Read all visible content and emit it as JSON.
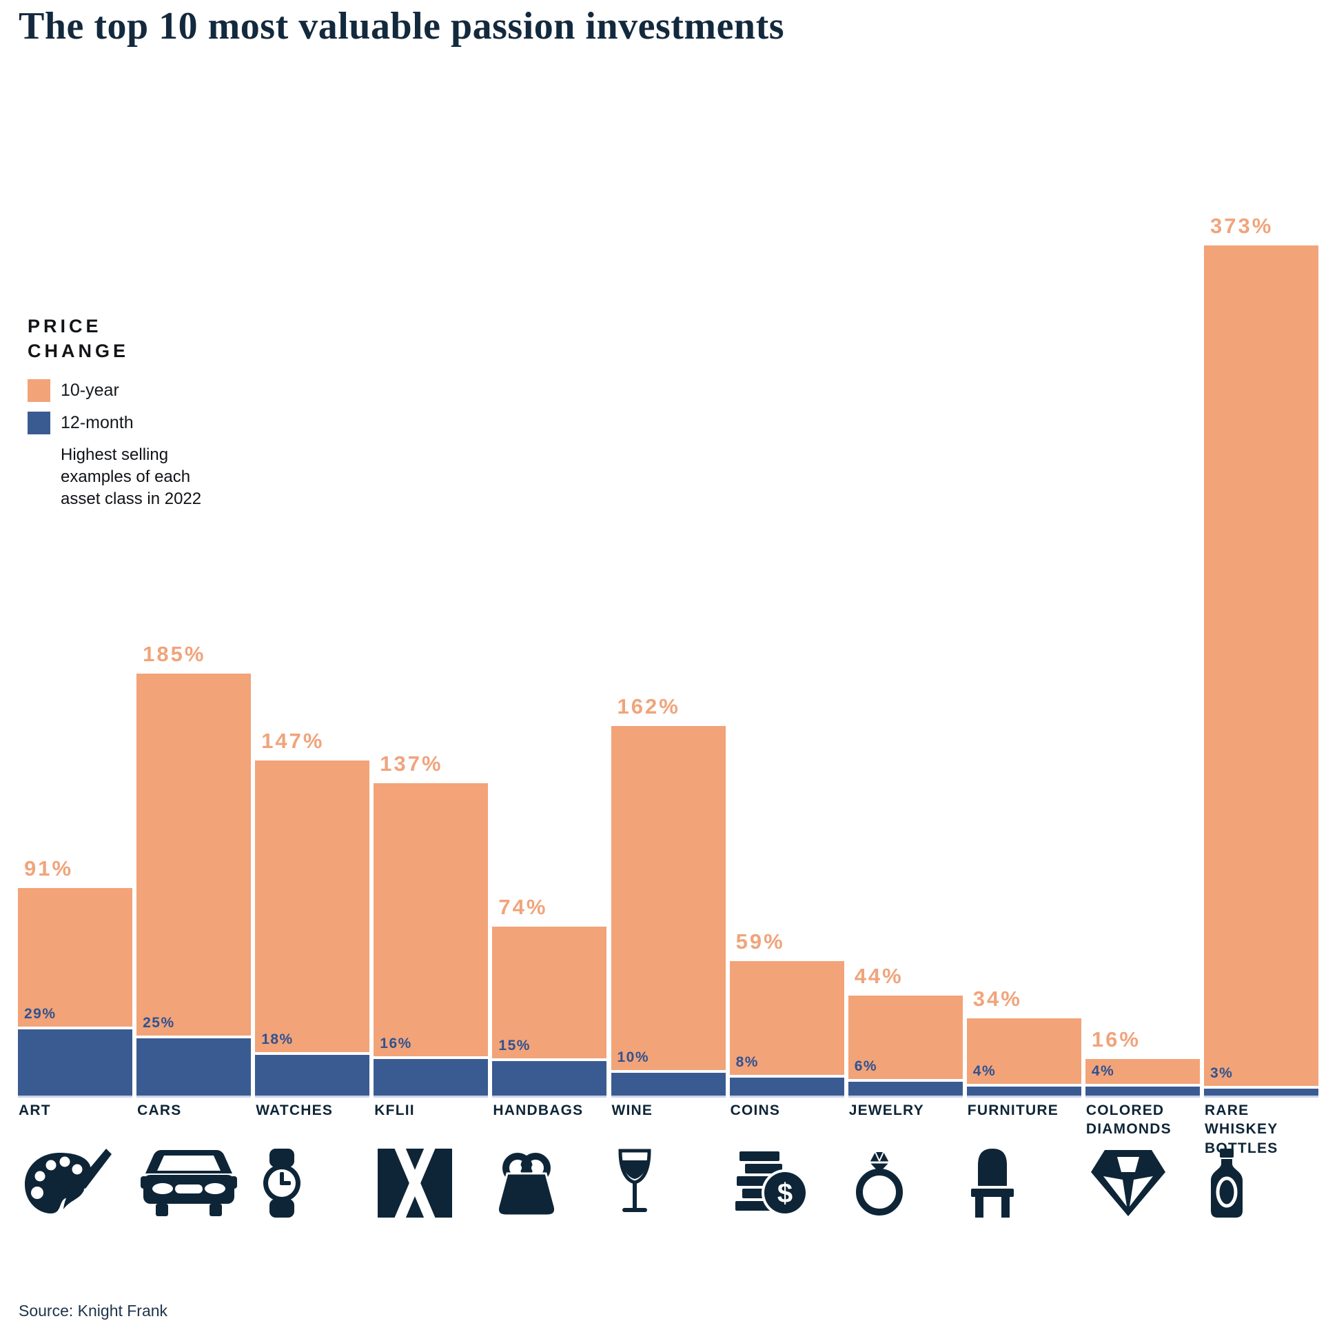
{
  "title": "The top 10 most valuable passion investments",
  "source": "Source: Knight Frank",
  "legend": {
    "title": "PRICE\nCHANGE",
    "items": [
      {
        "label": "10-year",
        "color": "#F2A378"
      },
      {
        "label": "12-month",
        "color": "#3A5B92"
      }
    ],
    "note": "Highest selling\nexamples of each\nasset class in 2022"
  },
  "colors": {
    "ten_year_bar": "#F2A378",
    "ten_year_text": "#F0A47C",
    "twelve_month_bar": "#3A5B92",
    "twelve_month_text": "#2F5290",
    "navy_text": "#0E2537",
    "title_text": "#13293D",
    "bar_underline": "#C9D2E8"
  },
  "chart_data": {
    "type": "bar",
    "title": "The top 10 most valuable passion investments",
    "categories": [
      "ART",
      "CARS",
      "WATCHES",
      "KFLII",
      "HANDBAGS",
      "WINE",
      "COINS",
      "JEWELRY",
      "FURNITURE",
      "COLORED DIAMONDS",
      "RARE WHISKEY BOTTLES"
    ],
    "series": [
      {
        "name": "10-year",
        "values": [
          91,
          185,
          147,
          137,
          74,
          162,
          59,
          44,
          34,
          16,
          373
        ]
      },
      {
        "name": "12-month",
        "values": [
          29,
          25,
          18,
          16,
          15,
          10,
          8,
          6,
          4,
          4,
          3
        ]
      }
    ],
    "value_suffix": "%",
    "ylabel": "Price change",
    "legend_position": "left",
    "grid": false,
    "icons": [
      "palette-icon",
      "car-icon",
      "watch-icon",
      "kf-logo-icon",
      "handbag-icon",
      "wine-glass-icon",
      "coins-icon",
      "ring-icon",
      "chair-icon",
      "diamond-icon",
      "whiskey-bottle-icon"
    ]
  }
}
